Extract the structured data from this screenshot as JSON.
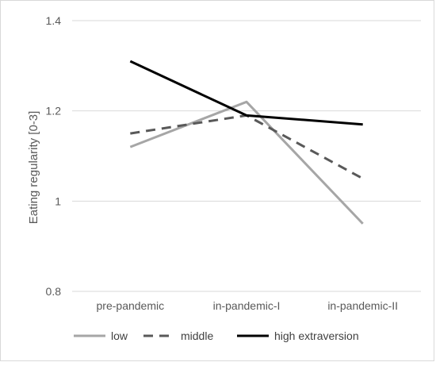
{
  "chart_data": {
    "type": "line",
    "categories": [
      "pre-pandemic",
      "in-pandemic-I",
      "in-pandemic-II"
    ],
    "ylabel": "Eating regularity [0-3]",
    "xlabel": "",
    "ylim": [
      0.8,
      1.4
    ],
    "yticks": [
      0.8,
      1,
      1.2,
      1.4
    ],
    "ytick_labels": [
      "0.8",
      "1",
      "1.2",
      "1.4"
    ],
    "grid": "horizontal",
    "legend_position": "bottom",
    "series": [
      {
        "name": "low",
        "values": [
          1.12,
          1.22,
          0.95
        ],
        "color": "#a6a6a6",
        "dash": "solid"
      },
      {
        "name": "middle",
        "values": [
          1.15,
          1.19,
          1.05
        ],
        "color": "#595959",
        "dash": "dashed"
      },
      {
        "name": "high extraversion",
        "values": [
          1.31,
          1.19,
          1.17
        ],
        "color": "#000000",
        "dash": "solid"
      }
    ]
  }
}
